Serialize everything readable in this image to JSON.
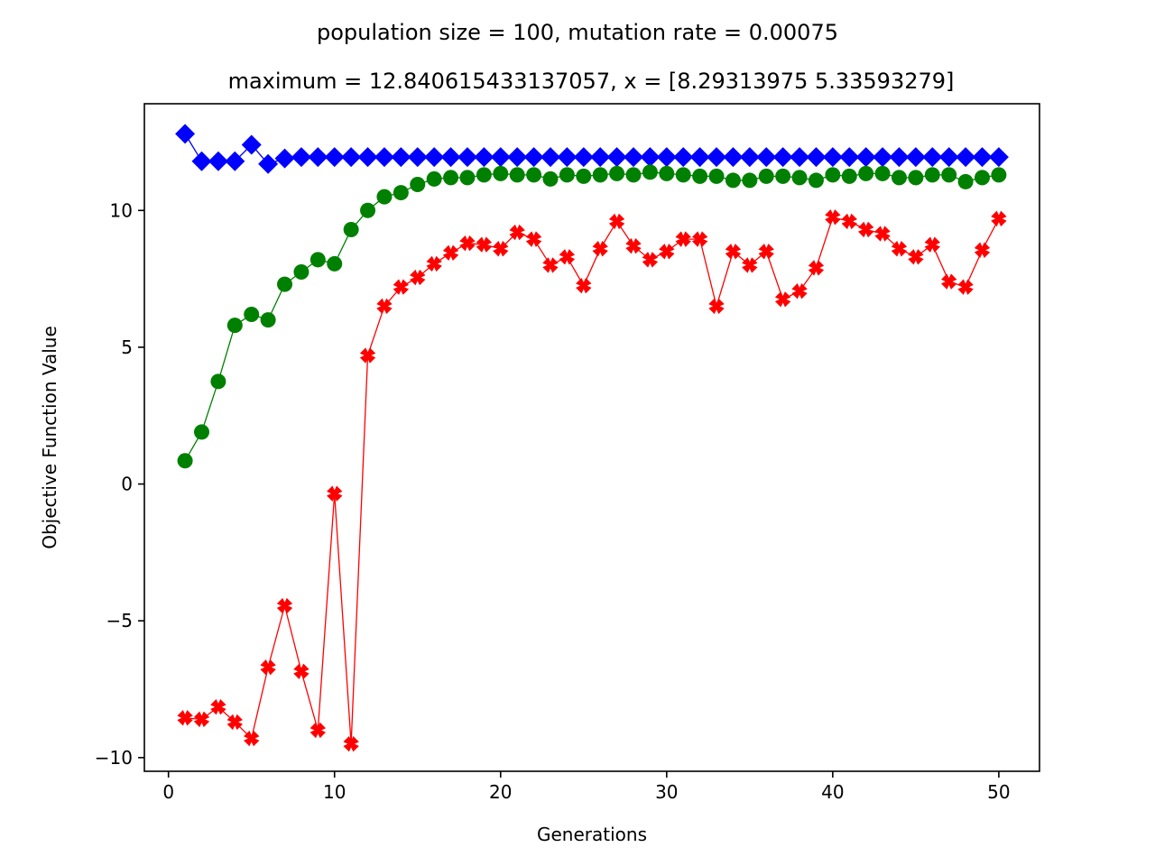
{
  "chart_data": {
    "type": "line",
    "title": "population size = 100, mutation rate = 0.00075",
    "subtitle": "maximum = 12.840615433137057, x = [8.29313975 5.33593279]",
    "xlabel": "Generations",
    "ylabel": "Objective Function Value",
    "xlim": [
      -1.45,
      52.45
    ],
    "ylim": [
      -10.5,
      13.9
    ],
    "xticks": [
      0,
      10,
      20,
      30,
      40,
      50
    ],
    "yticks": [
      -10,
      -5,
      0,
      5,
      10
    ],
    "xtick_labels": [
      "0",
      "10",
      "20",
      "30",
      "40",
      "50"
    ],
    "ytick_labels": [
      "−10",
      "−5",
      "0",
      "5",
      "10"
    ],
    "grid": false,
    "x": [
      1,
      2,
      3,
      4,
      5,
      6,
      7,
      8,
      9,
      10,
      11,
      12,
      13,
      14,
      15,
      16,
      17,
      18,
      19,
      20,
      21,
      22,
      23,
      24,
      25,
      26,
      27,
      28,
      29,
      30,
      31,
      32,
      33,
      34,
      35,
      36,
      37,
      38,
      39,
      40,
      41,
      42,
      43,
      44,
      45,
      46,
      47,
      48,
      49,
      50
    ],
    "series": [
      {
        "color": "#0000ff",
        "marker": "diamond",
        "values": [
          12.8,
          11.8,
          11.8,
          11.8,
          12.4,
          11.7,
          11.9,
          11.95,
          11.95,
          11.95,
          11.95,
          11.95,
          11.95,
          11.95,
          11.95,
          11.95,
          11.95,
          11.95,
          11.95,
          11.95,
          11.95,
          11.95,
          11.95,
          11.95,
          11.95,
          11.95,
          11.95,
          11.95,
          11.95,
          11.95,
          11.95,
          11.95,
          11.95,
          11.95,
          11.95,
          11.95,
          11.95,
          11.95,
          11.95,
          11.95,
          11.95,
          11.95,
          11.95,
          11.95,
          11.95,
          11.95,
          11.95,
          11.95,
          11.95,
          11.95
        ]
      },
      {
        "color": "#008000",
        "marker": "circle",
        "values": [
          0.85,
          1.9,
          3.75,
          5.8,
          6.2,
          6.0,
          7.3,
          7.75,
          8.2,
          8.05,
          9.3,
          10.0,
          10.5,
          10.65,
          10.95,
          11.15,
          11.2,
          11.2,
          11.3,
          11.35,
          11.3,
          11.3,
          11.15,
          11.3,
          11.25,
          11.3,
          11.35,
          11.3,
          11.4,
          11.35,
          11.3,
          11.25,
          11.25,
          11.1,
          11.1,
          11.25,
          11.25,
          11.2,
          11.1,
          11.3,
          11.25,
          11.35,
          11.35,
          11.2,
          11.2,
          11.3,
          11.3,
          11.05,
          11.2,
          11.3
        ]
      },
      {
        "color": "#ff0000",
        "marker": "x",
        "values": [
          -8.55,
          -8.6,
          -8.15,
          -8.7,
          -9.3,
          -6.7,
          -4.45,
          -6.85,
          -9.0,
          -0.35,
          -9.5,
          4.7,
          6.5,
          7.2,
          7.55,
          8.05,
          8.45,
          8.8,
          8.75,
          8.6,
          9.2,
          8.95,
          8.0,
          8.3,
          7.25,
          8.6,
          9.6,
          8.7,
          8.2,
          8.5,
          8.95,
          8.95,
          6.5,
          8.5,
          8.0,
          8.5,
          6.75,
          7.05,
          7.9,
          9.75,
          9.6,
          9.3,
          9.15,
          8.6,
          8.3,
          8.75,
          7.4,
          7.2,
          8.55,
          9.7
        ]
      }
    ]
  }
}
